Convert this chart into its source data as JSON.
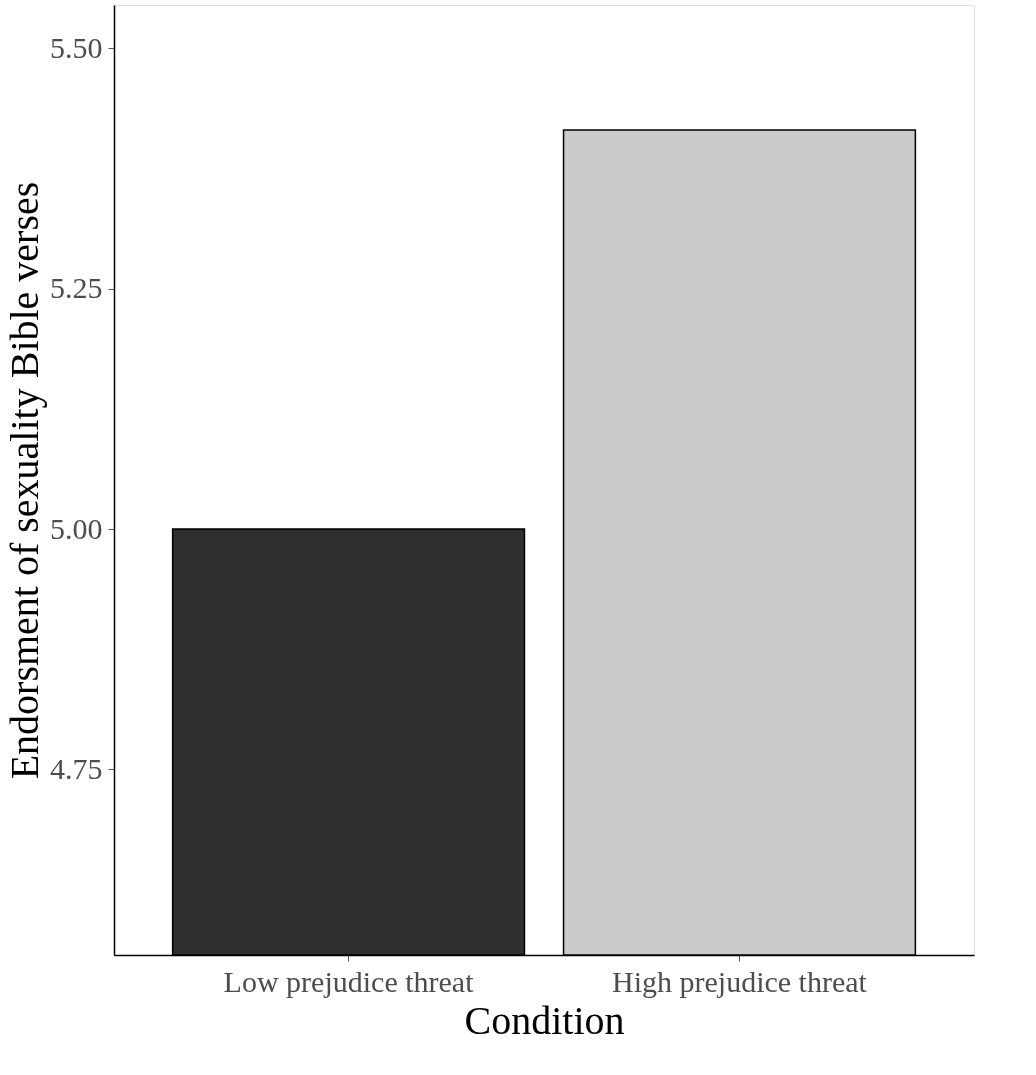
{
  "chart_data": {
    "type": "bar",
    "xlabel": "Condition",
    "ylabel": "Endorsment of sexuality Bible verses",
    "categories": [
      "Low prejudice threat",
      "High prejudice threat"
    ],
    "values": [
      5.0,
      5.415
    ],
    "colors": [
      "#2f2f2f",
      "#cbcbcb"
    ],
    "ylim": [
      4.557,
      5.545
    ],
    "yticks": [
      {
        "value": 4.75,
        "label": "4.75"
      },
      {
        "value": 5.0,
        "label": "5.00"
      },
      {
        "value": 5.25,
        "label": "5.25"
      },
      {
        "value": 5.5,
        "label": "5.50"
      }
    ],
    "grid": false
  }
}
